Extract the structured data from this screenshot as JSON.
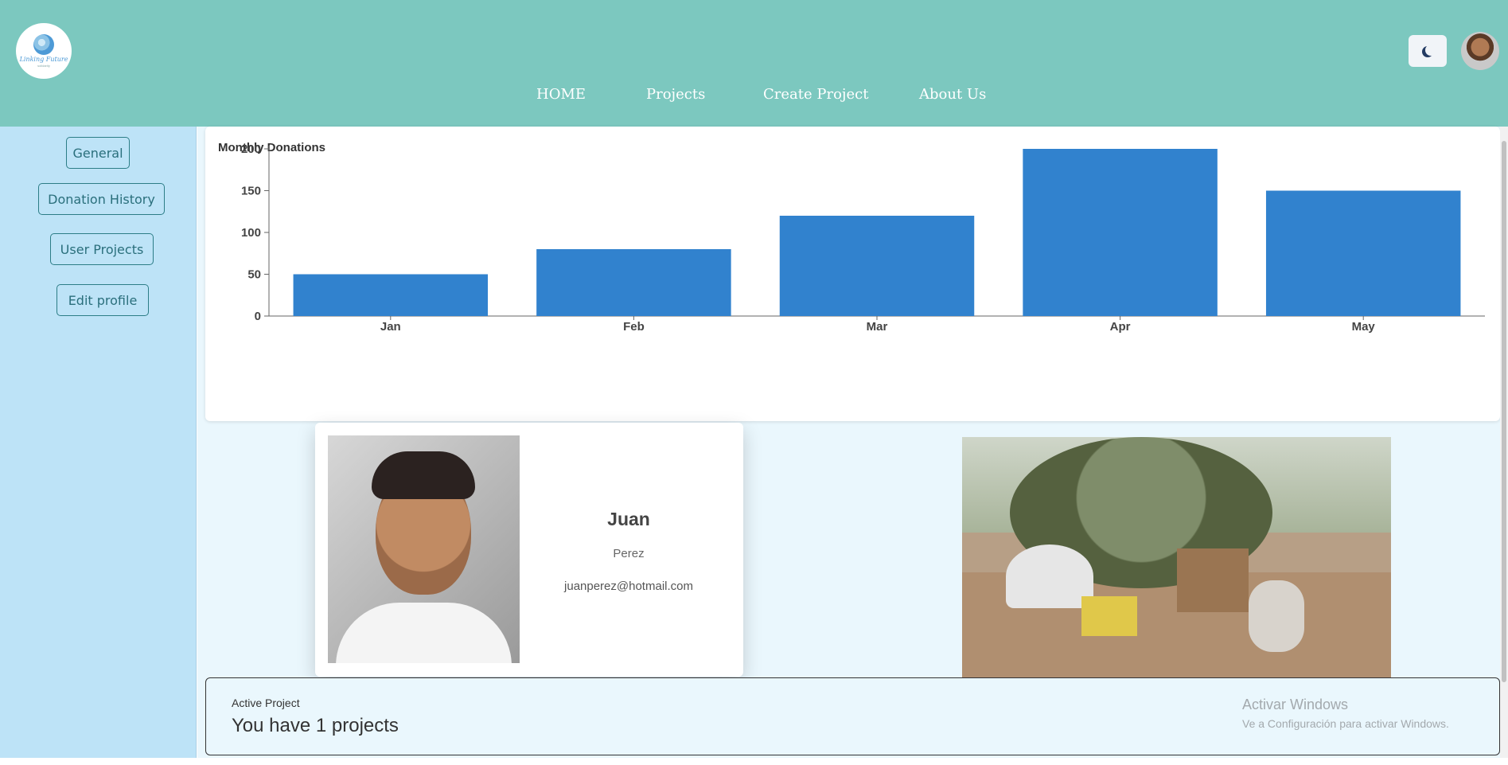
{
  "header": {
    "logo": {
      "text": "Linking Future",
      "sub": "solidarity"
    },
    "nav": [
      {
        "label": "HOME"
      },
      {
        "label": "Projects"
      },
      {
        "label": "Create Project"
      },
      {
        "label": "About Us"
      }
    ],
    "theme_icon": "moon-icon"
  },
  "sidebar": {
    "items": [
      {
        "label": "General"
      },
      {
        "label": "Donation History"
      },
      {
        "label": "User Projects"
      },
      {
        "label": "Edit profile"
      }
    ]
  },
  "chart_data": {
    "type": "bar",
    "title": "Monthly Donations",
    "categories": [
      "Jan",
      "Feb",
      "Mar",
      "Apr",
      "May"
    ],
    "values": [
      50,
      80,
      120,
      200,
      150
    ],
    "ylim": [
      0,
      200
    ],
    "yticks": [
      0,
      50,
      100,
      150,
      200
    ],
    "xlabel": "",
    "ylabel": "",
    "color": "#3182ce",
    "grid": false
  },
  "profile": {
    "first_name": "Juan",
    "last_name": "Perez",
    "email": "juanperez@hotmail.com"
  },
  "active_project": {
    "label": "Active Project",
    "text": "You have 1 projects"
  },
  "watermark": {
    "title": "Activar Windows",
    "subtitle": "Ve a Configuración para activar Windows."
  },
  "colors": {
    "header": "#7cc8bf",
    "sidebar": "#bde3f7",
    "main": "#eaf7fd",
    "bar": "#3182ce"
  }
}
